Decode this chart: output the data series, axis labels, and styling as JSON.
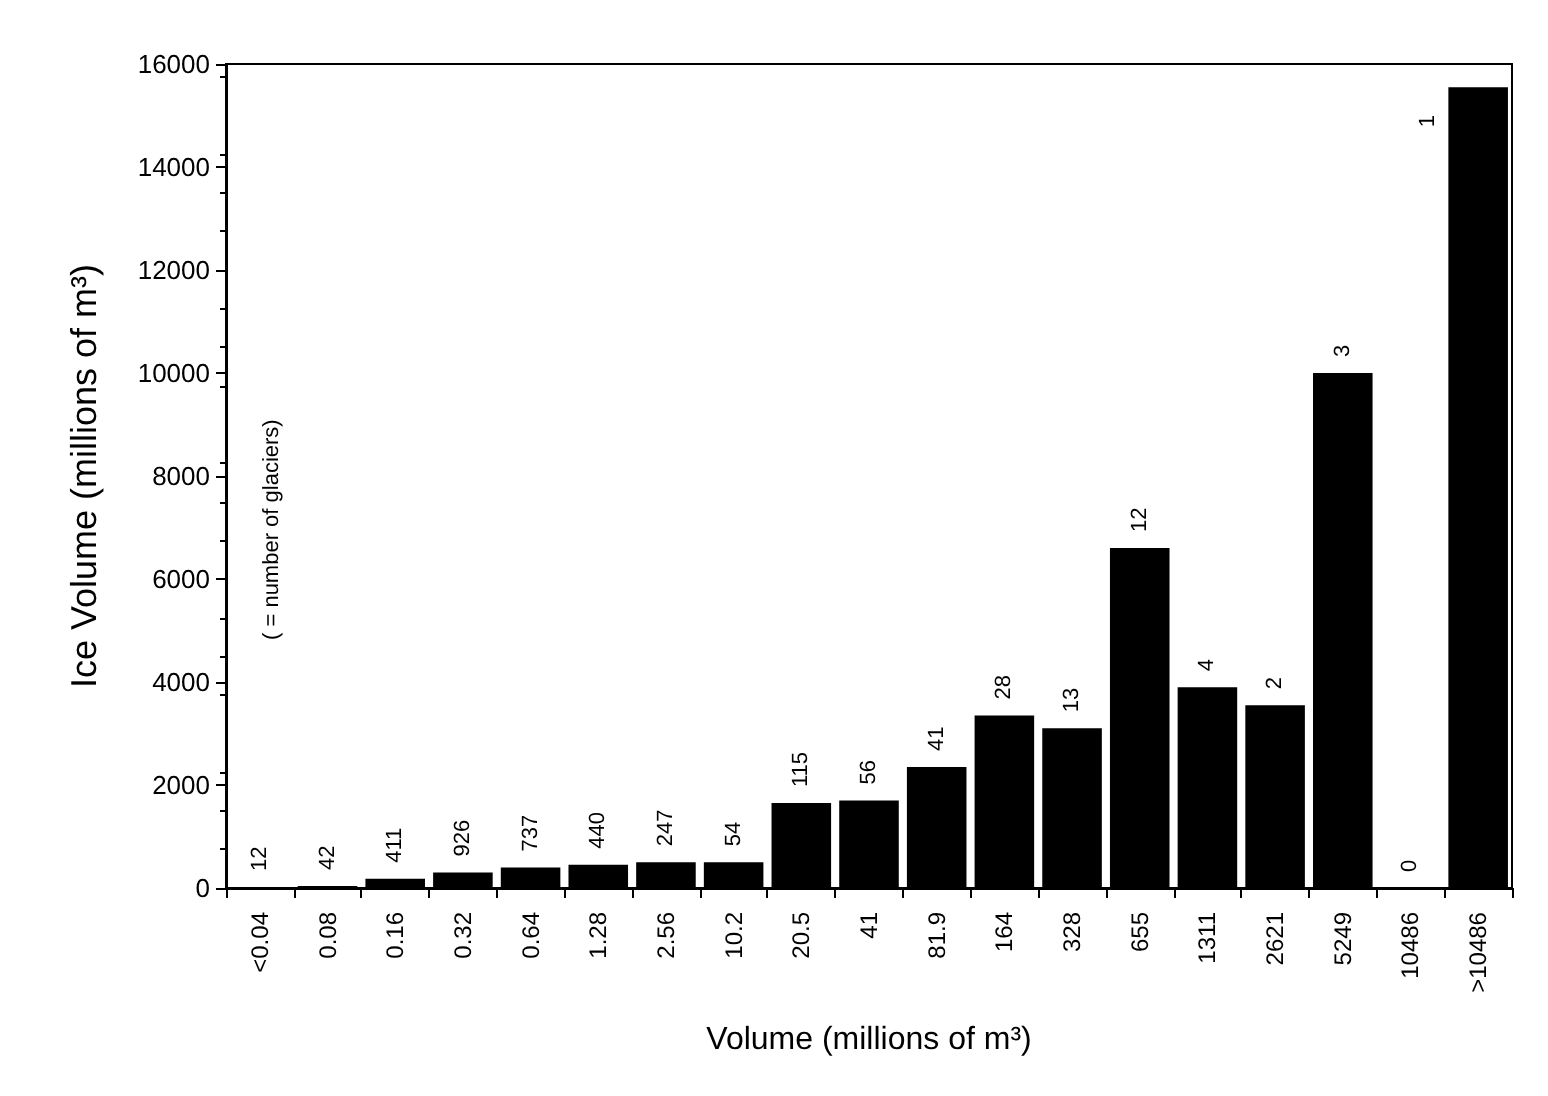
{
  "chart_data": {
    "type": "bar",
    "ylabel": "Ice Volume (millions of m³)",
    "xlabel": "Volume (millions of m³)",
    "categories": [
      "<0.04",
      "0.08",
      "0.16",
      "0.32",
      "0.64",
      "1.28",
      "2.56",
      "10.2",
      "20.5",
      "41",
      "81.9",
      "164",
      "328",
      "655",
      "1311",
      "2621",
      "5249",
      "10486",
      ">10486"
    ],
    "values": [
      20,
      40,
      180,
      300,
      400,
      450,
      500,
      500,
      1650,
      1700,
      2350,
      3350,
      3100,
      6600,
      3900,
      3550,
      10000,
      0,
      15550
    ],
    "color": "#000000",
    "ylim": [
      0,
      16000
    ],
    "yticks": [
      0,
      2000,
      4000,
      6000,
      8000,
      10000,
      12000,
      14000,
      16000
    ],
    "grid": false,
    "annotations": [
      "( = number of glaciers)",
      {
        "text": "12",
        "x": "<0.04",
        "y": 20
      },
      {
        "text": "42",
        "x": "0.08",
        "y": 40
      },
      {
        "text": "411",
        "x": "0.16",
        "y": 180
      },
      {
        "text": "926",
        "x": "0.32",
        "y": 300
      },
      {
        "text": "737",
        "x": "0.64",
        "y": 400
      },
      {
        "text": "440",
        "x": "1.28",
        "y": 450
      },
      {
        "text": "247",
        "x": "2.56",
        "y": 500
      },
      {
        "text": "54",
        "x": "10.2",
        "y": 500
      },
      {
        "text": "115",
        "x": "20.5",
        "y": 1650
      },
      {
        "text": "56",
        "x": "41",
        "y": 1700
      },
      {
        "text": "41",
        "x": "81.9",
        "y": 2350
      },
      {
        "text": "28",
        "x": "164",
        "y": 3350
      },
      {
        "text": "13",
        "x": "328",
        "y": 3100
      },
      {
        "text": "12",
        "x": "655",
        "y": 6600
      },
      {
        "text": "4",
        "x": "1311",
        "y": 3900
      },
      {
        "text": "2",
        "x": "2621",
        "y": 3550
      },
      {
        "text": "3",
        "x": "5249",
        "y": 10000
      },
      {
        "text": "0",
        "x": "10486",
        "y": 0
      },
      {
        "text": "1",
        "x": ">10486",
        "y": 15550
      }
    ]
  }
}
